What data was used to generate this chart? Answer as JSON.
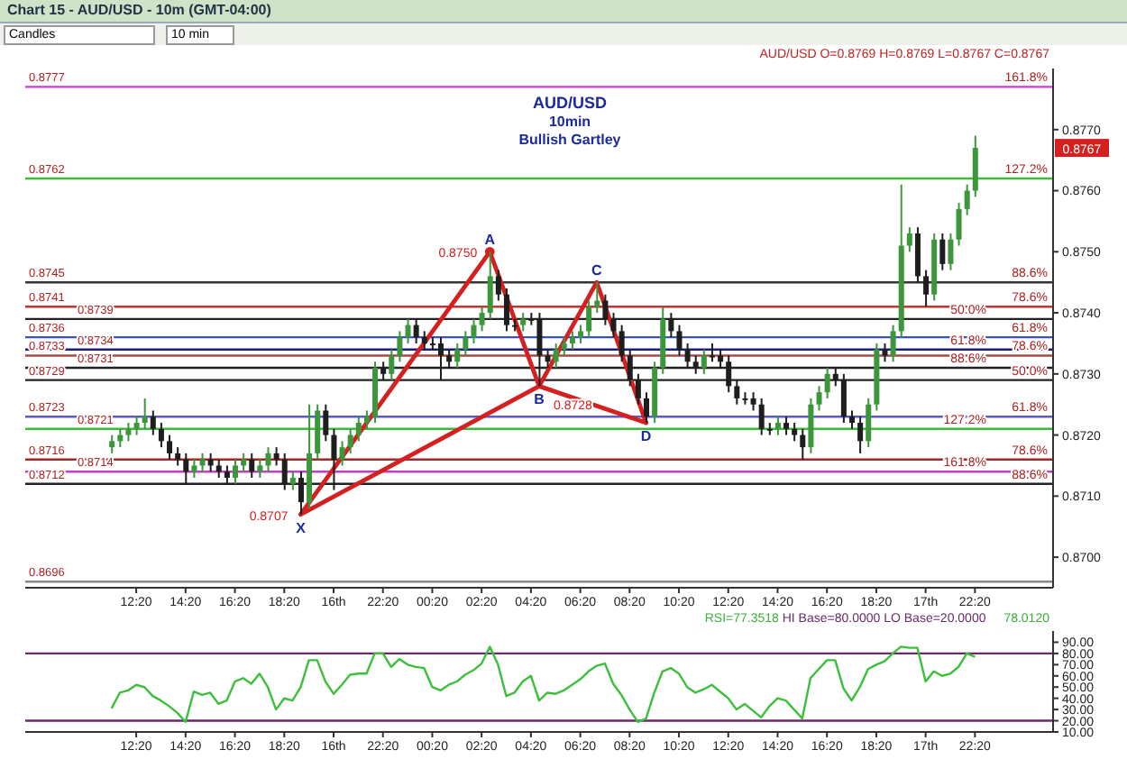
{
  "chart_data": [
    {
      "type": "candlestick",
      "title": "AUD/USD",
      "subtitle": "10min",
      "annotations": [
        "Chart 15 - AUD/USD - 10m (GMT-04:00)",
        "Candles",
        "10 min",
        "Bullish Gartley",
        "AUD/USD O=0.8769 H=0.8769 L=0.8767 C=0.8767",
        "0.8767",
        {
          "text": "161.8%",
          "y": 0.8777
        },
        {
          "text": "127.2%",
          "y": 0.8762
        },
        {
          "text": "88.6%",
          "y": 0.8745
        },
        {
          "text": "78.6%",
          "y": 0.8741
        },
        {
          "text": "50.0%",
          "y": 0.8739
        },
        {
          "text": "61.8%",
          "y": 0.8736
        },
        {
          "text": "61.8%",
          "y": 0.8734
        },
        {
          "text": "78.6%",
          "y": 0.8733
        },
        {
          "text": "88.6%",
          "y": 0.8731
        },
        {
          "text": "50.0%",
          "y": 0.8729
        },
        {
          "text": "61.8%",
          "y": 0.8723
        },
        {
          "text": "127.2%",
          "y": 0.8721
        },
        {
          "text": "78.6%",
          "y": 0.8716
        },
        {
          "text": "161.8%",
          "y": 0.8714
        },
        {
          "text": "88.6%",
          "y": 0.8712
        }
      ],
      "categories": [
        null,
        null,
        null,
        "12:20",
        null,
        null,
        null,
        null,
        null,
        "14:20",
        null,
        null,
        null,
        null,
        null,
        "16:20",
        null,
        null,
        null,
        null,
        null,
        "18:20",
        null,
        null,
        null,
        null,
        null,
        "16th",
        null,
        null,
        null,
        null,
        null,
        "22:20",
        null,
        null,
        null,
        null,
        null,
        "00:20",
        null,
        null,
        null,
        null,
        null,
        "02:20",
        null,
        null,
        null,
        null,
        null,
        "04:20",
        null,
        null,
        null,
        null,
        null,
        "06:20",
        null,
        null,
        null,
        null,
        null,
        "08:20",
        null,
        null,
        null,
        null,
        null,
        "10:20",
        null,
        null,
        null,
        null,
        null,
        "12:20",
        null,
        null,
        null,
        null,
        null,
        "14:20",
        null,
        null,
        null,
        null,
        null,
        "16:20",
        null,
        null,
        null,
        null,
        null,
        "18:20",
        null,
        null,
        null,
        null,
        null,
        "17th",
        null,
        null,
        null,
        null,
        null,
        "22:20",
        null,
        null,
        null,
        null
      ],
      "ohlc": [
        [
          0.8718,
          0.872,
          0.8717,
          0.8719
        ],
        [
          0.8719,
          0.8721,
          0.8718,
          0.872
        ],
        [
          0.872,
          0.8722,
          0.8719,
          0.8721
        ],
        [
          0.8721,
          0.8723,
          0.872,
          0.8722
        ],
        [
          0.8722,
          0.8726,
          0.8721,
          0.8723
        ],
        [
          0.8723,
          0.8724,
          0.872,
          0.8721
        ],
        [
          0.8721,
          0.8722,
          0.8718,
          0.8719
        ],
        [
          0.8719,
          0.872,
          0.8716,
          0.8717
        ],
        [
          0.8717,
          0.8718,
          0.8715,
          0.8716
        ],
        [
          0.8716,
          0.8717,
          0.8712,
          0.8714
        ],
        [
          0.8714,
          0.8716,
          0.8713,
          0.8715
        ],
        [
          0.8715,
          0.8717,
          0.8714,
          0.8716
        ],
        [
          0.8716,
          0.8717,
          0.8714,
          0.8715
        ],
        [
          0.8715,
          0.8716,
          0.8713,
          0.8714
        ],
        [
          0.8714,
          0.8715,
          0.8712,
          0.8713
        ],
        [
          0.8713,
          0.8716,
          0.8712,
          0.8715
        ],
        [
          0.8715,
          0.8717,
          0.8714,
          0.8716
        ],
        [
          0.8716,
          0.8717,
          0.8713,
          0.8714
        ],
        [
          0.8714,
          0.8716,
          0.8713,
          0.8715
        ],
        [
          0.8715,
          0.8718,
          0.8714,
          0.8717
        ],
        [
          0.8717,
          0.8718,
          0.8715,
          0.8716
        ],
        [
          0.8716,
          0.8717,
          0.8711,
          0.8712
        ],
        [
          0.8712,
          0.8714,
          0.8711,
          0.8713
        ],
        [
          0.8713,
          0.8714,
          0.8707,
          0.8709
        ],
        [
          0.8709,
          0.8725,
          0.8708,
          0.8717
        ],
        [
          0.8717,
          0.8725,
          0.8716,
          0.8724
        ],
        [
          0.8724,
          0.8725,
          0.8719,
          0.872
        ],
        [
          0.872,
          0.8721,
          0.8711,
          0.8716
        ],
        [
          0.8716,
          0.8719,
          0.8715,
          0.8718
        ],
        [
          0.8718,
          0.8721,
          0.8717,
          0.872
        ],
        [
          0.872,
          0.8723,
          0.8719,
          0.8722
        ],
        [
          0.8722,
          0.8724,
          0.8721,
          0.8723
        ],
        [
          0.8723,
          0.8732,
          0.8722,
          0.8731
        ],
        [
          0.8731,
          0.8732,
          0.8729,
          0.873
        ],
        [
          0.873,
          0.8734,
          0.8729,
          0.8733
        ],
        [
          0.8733,
          0.8737,
          0.8732,
          0.8736
        ],
        [
          0.8736,
          0.8739,
          0.8735,
          0.8738
        ],
        [
          0.8738,
          0.8739,
          0.8735,
          0.8736
        ],
        [
          0.8736,
          0.8737,
          0.8734,
          0.8735
        ],
        [
          0.8735,
          0.8736,
          0.8734,
          0.8735
        ],
        [
          0.8735,
          0.8736,
          0.8729,
          0.8733
        ],
        [
          0.8733,
          0.8734,
          0.8731,
          0.8732
        ],
        [
          0.8732,
          0.8735,
          0.8731,
          0.8734
        ],
        [
          0.8734,
          0.8737,
          0.8733,
          0.8736
        ],
        [
          0.8736,
          0.8739,
          0.8735,
          0.8738
        ],
        [
          0.8738,
          0.8741,
          0.8737,
          0.874
        ],
        [
          0.874,
          0.875,
          0.8739,
          0.8746
        ],
        [
          0.8746,
          0.8747,
          0.8742,
          0.8743
        ],
        [
          0.8743,
          0.8744,
          0.8737,
          0.8738
        ],
        [
          0.8738,
          0.8739,
          0.8737,
          0.8738
        ],
        [
          0.8738,
          0.874,
          0.8737,
          0.8739
        ],
        [
          0.8739,
          0.874,
          0.8738,
          0.8739
        ],
        [
          0.8739,
          0.874,
          0.8728,
          0.8733
        ],
        [
          0.8733,
          0.8734,
          0.8731,
          0.8732
        ],
        [
          0.8732,
          0.8735,
          0.8731,
          0.8734
        ],
        [
          0.8734,
          0.8736,
          0.8733,
          0.8735
        ],
        [
          0.8735,
          0.8737,
          0.8734,
          0.8736
        ],
        [
          0.8736,
          0.8738,
          0.8735,
          0.8737
        ],
        [
          0.8737,
          0.8742,
          0.8736,
          0.8741
        ],
        [
          0.8741,
          0.8745,
          0.874,
          0.8742
        ],
        [
          0.8742,
          0.8743,
          0.8738,
          0.8739
        ],
        [
          0.8739,
          0.874,
          0.8736,
          0.8737
        ],
        [
          0.8737,
          0.8738,
          0.8732,
          0.8733
        ],
        [
          0.8733,
          0.8734,
          0.8728,
          0.8729
        ],
        [
          0.8729,
          0.873,
          0.8725,
          0.8726
        ],
        [
          0.8726,
          0.8727,
          0.8722,
          0.8723
        ],
        [
          0.8723,
          0.8732,
          0.8722,
          0.8731
        ],
        [
          0.8731,
          0.8741,
          0.873,
          0.8739
        ],
        [
          0.8739,
          0.874,
          0.8736,
          0.8737
        ],
        [
          0.8737,
          0.8738,
          0.8733,
          0.8734
        ],
        [
          0.8734,
          0.8735,
          0.8731,
          0.8732
        ],
        [
          0.8732,
          0.8733,
          0.873,
          0.8731
        ],
        [
          0.8731,
          0.8734,
          0.873,
          0.8733
        ],
        [
          0.8733,
          0.8735,
          0.8732,
          0.8733
        ],
        [
          0.8733,
          0.8734,
          0.8731,
          0.8732
        ],
        [
          0.8732,
          0.8733,
          0.8727,
          0.8728
        ],
        [
          0.8728,
          0.8729,
          0.8725,
          0.8726
        ],
        [
          0.8726,
          0.8727,
          0.8725,
          0.8726
        ],
        [
          0.8726,
          0.8727,
          0.8724,
          0.8725
        ],
        [
          0.8725,
          0.8726,
          0.872,
          0.8721
        ],
        [
          0.8721,
          0.8722,
          0.872,
          0.8721
        ],
        [
          0.8721,
          0.8723,
          0.872,
          0.8722
        ],
        [
          0.8722,
          0.8723,
          0.872,
          0.8721
        ],
        [
          0.8721,
          0.8722,
          0.8719,
          0.872
        ],
        [
          0.872,
          0.8721,
          0.8716,
          0.8718
        ],
        [
          0.8718,
          0.8726,
          0.8717,
          0.8725
        ],
        [
          0.8725,
          0.8728,
          0.8724,
          0.8727
        ],
        [
          0.8727,
          0.8731,
          0.8726,
          0.873
        ],
        [
          0.873,
          0.8731,
          0.8728,
          0.8729
        ],
        [
          0.8729,
          0.873,
          0.8722,
          0.8723
        ],
        [
          0.8723,
          0.8724,
          0.8721,
          0.8722
        ],
        [
          0.8722,
          0.8723,
          0.8717,
          0.8719
        ],
        [
          0.8719,
          0.8726,
          0.8718,
          0.8725
        ],
        [
          0.8725,
          0.8735,
          0.8724,
          0.8734
        ],
        [
          0.8734,
          0.8735,
          0.8732,
          0.8733
        ],
        [
          0.8733,
          0.8738,
          0.8732,
          0.8737
        ],
        [
          0.8737,
          0.8761,
          0.8736,
          0.8751
        ],
        [
          0.8751,
          0.8754,
          0.875,
          0.8753
        ],
        [
          0.8753,
          0.8754,
          0.8745,
          0.8746
        ],
        [
          0.8746,
          0.8747,
          0.8741,
          0.8743
        ],
        [
          0.8743,
          0.8753,
          0.8742,
          0.8752
        ],
        [
          0.8752,
          0.8753,
          0.8747,
          0.8748
        ],
        [
          0.8748,
          0.8753,
          0.8747,
          0.8752
        ],
        [
          0.8752,
          0.8758,
          0.8751,
          0.8757
        ],
        [
          0.8757,
          0.8761,
          0.8756,
          0.876
        ],
        [
          0.876,
          0.8769,
          0.8759,
          0.8767
        ],
        null,
        null,
        null,
        null
      ],
      "colors": [
        "#3c963c",
        "#3c963c",
        "#3c963c",
        "#3c963c",
        "#3c963c",
        "#1e1e1e",
        "#1e1e1e",
        "#1e1e1e",
        "#1e1e1e",
        "#1e1e1e",
        "#3c963c",
        "#3c963c",
        "#1e1e1e",
        "#1e1e1e",
        "#1e1e1e",
        "#3c963c",
        "#3c963c",
        "#1e1e1e",
        "#3c963c",
        "#3c963c",
        "#1e1e1e",
        "#1e1e1e",
        "#3c963c",
        "#1e1e1e",
        "#3c963c",
        "#3c963c",
        "#1e1e1e",
        "#1e1e1e",
        "#3c963c",
        "#3c963c",
        "#3c963c",
        "#3c963c",
        "#3c963c",
        "#1e1e1e",
        "#3c963c",
        "#3c963c",
        "#3c963c",
        "#1e1e1e",
        "#1e1e1e",
        "#1e1e1e",
        "#1e1e1e",
        "#1e1e1e",
        "#3c963c",
        "#3c963c",
        "#3c963c",
        "#3c963c",
        "#3c963c",
        "#1e1e1e",
        "#1e1e1e",
        "#1e1e1e",
        "#3c963c",
        "#1e1e1e",
        "#1e1e1e",
        "#1e1e1e",
        "#3c963c",
        "#3c963c",
        "#3c963c",
        "#3c963c",
        "#3c963c",
        "#3c963c",
        "#1e1e1e",
        "#1e1e1e",
        "#1e1e1e",
        "#1e1e1e",
        "#1e1e1e",
        "#1e1e1e",
        "#3c963c",
        "#3c963c",
        "#1e1e1e",
        "#1e1e1e",
        "#1e1e1e",
        "#1e1e1e",
        "#3c963c",
        "#1e1e1e",
        "#1e1e1e",
        "#1e1e1e",
        "#1e1e1e",
        "#1e1e1e",
        "#1e1e1e",
        "#1e1e1e",
        "#1e1e1e",
        "#3c963c",
        "#1e1e1e",
        "#1e1e1e",
        "#1e1e1e",
        "#3c963c",
        "#3c963c",
        "#3c963c",
        "#1e1e1e",
        "#1e1e1e",
        "#1e1e1e",
        "#1e1e1e",
        "#3c963c",
        "#3c963c",
        "#1e1e1e",
        "#3c963c",
        "#3c963c",
        "#3c963c",
        "#1e1e1e",
        "#1e1e1e",
        "#3c963c",
        "#1e1e1e",
        "#3c963c",
        "#3c963c",
        "#3c963c",
        "#3c963c",
        null,
        null,
        null,
        null
      ],
      "series": [
        {
          "type": "line",
          "color": "#d42020",
          "values": [
            null,
            null,
            null,
            null,
            null,
            null,
            null,
            null,
            null,
            null,
            null,
            null,
            null,
            null,
            null,
            null,
            null,
            null,
            null,
            null,
            null,
            null,
            null,
            0.8707,
            null,
            null,
            null,
            null,
            null,
            null,
            null,
            null,
            null,
            null,
            null,
            null,
            null,
            null,
            null,
            null,
            null,
            null,
            null,
            null,
            null,
            null,
            0.875,
            null,
            null,
            null,
            null,
            null,
            0.8728,
            null,
            null,
            null,
            null,
            null,
            null,
            0.8745,
            null,
            null,
            null,
            null,
            null,
            0.8722,
            null,
            null,
            null,
            null,
            null,
            null,
            null,
            null,
            null,
            null,
            null,
            null,
            null,
            null,
            null,
            null,
            null,
            null,
            null,
            null,
            null,
            null,
            null,
            null,
            null,
            null,
            null,
            null,
            null,
            null,
            null,
            null,
            null,
            null,
            null,
            null,
            null,
            null,
            null,
            null,
            null,
            null,
            null,
            null
          ],
          "value_labels": [
            null,
            null,
            null,
            null,
            null,
            null,
            null,
            null,
            null,
            null,
            null,
            null,
            null,
            null,
            null,
            null,
            null,
            null,
            null,
            null,
            null,
            null,
            null,
            "X",
            null,
            null,
            null,
            null,
            null,
            null,
            null,
            null,
            null,
            null,
            null,
            null,
            null,
            null,
            null,
            null,
            null,
            null,
            null,
            null,
            null,
            null,
            "A",
            null,
            null,
            null,
            null,
            null,
            "B",
            null,
            null,
            null,
            null,
            null,
            null,
            "C",
            null,
            null,
            null,
            null,
            null,
            "D",
            null,
            null,
            null,
            null,
            null,
            null,
            null,
            null,
            null,
            null,
            null,
            null,
            null,
            null,
            null,
            null,
            null,
            null,
            null,
            null,
            null,
            null,
            null,
            null,
            null,
            null,
            null,
            null,
            null,
            null,
            null,
            null,
            null,
            null,
            null,
            null,
            null,
            null,
            null,
            null,
            null,
            null,
            null,
            null
          ]
        },
        {
          "type": "line",
          "color": "#d42020",
          "values": [
            null,
            null,
            null,
            null,
            null,
            null,
            null,
            null,
            null,
            null,
            null,
            null,
            null,
            null,
            null,
            null,
            null,
            null,
            null,
            null,
            null,
            null,
            null,
            0.8707,
            null,
            null,
            null,
            null,
            null,
            null,
            null,
            null,
            null,
            null,
            null,
            null,
            null,
            null,
            null,
            null,
            null,
            null,
            null,
            null,
            null,
            null,
            null,
            null,
            null,
            null,
            null,
            null,
            0.8728,
            null,
            null,
            null,
            null,
            null,
            null,
            null,
            null,
            null,
            null,
            null,
            null,
            0.8722,
            null,
            null,
            null,
            null,
            null,
            null,
            null,
            null,
            null,
            null,
            null,
            null,
            null,
            null,
            null,
            null,
            null,
            null,
            null,
            null,
            null,
            null,
            null,
            null,
            null,
            null,
            null,
            null,
            null,
            null,
            null,
            null,
            null,
            null,
            null,
            null,
            null,
            null,
            null,
            null,
            null,
            null,
            null,
            null
          ],
          "value_labels": [
            null,
            null,
            null,
            null,
            null,
            null,
            null,
            null,
            null,
            null,
            null,
            null,
            null,
            null,
            null,
            null,
            null,
            null,
            null,
            null,
            null,
            null,
            null,
            "0.8707",
            null,
            null,
            null,
            null,
            null,
            null,
            null,
            null,
            null,
            null,
            null,
            null,
            null,
            null,
            null,
            null,
            null,
            null,
            null,
            null,
            null,
            null,
            null,
            null,
            null,
            null,
            null,
            null,
            "0.8728",
            null,
            null,
            null,
            null,
            null,
            null,
            null,
            null,
            null,
            null,
            null,
            null,
            null,
            null,
            null,
            null,
            null,
            null,
            null,
            null,
            null,
            null,
            null,
            null,
            null,
            null,
            null,
            null,
            null,
            null,
            null,
            null,
            null,
            null,
            null,
            null,
            null,
            null,
            null,
            null,
            null,
            null,
            null,
            null,
            null,
            null,
            null,
            null,
            null,
            null,
            null,
            null,
            null,
            null,
            null,
            null,
            null
          ]
        },
        {
          "type": "line",
          "color": "#d42020",
          "marker": "circle",
          "values": [
            null,
            null,
            null,
            null,
            null,
            null,
            null,
            null,
            null,
            null,
            null,
            null,
            null,
            null,
            null,
            null,
            null,
            null,
            null,
            null,
            null,
            null,
            null,
            null,
            null,
            null,
            null,
            null,
            null,
            null,
            null,
            null,
            null,
            null,
            null,
            null,
            null,
            null,
            null,
            null,
            null,
            null,
            null,
            null,
            null,
            null,
            0.875,
            null,
            null,
            null,
            null,
            null,
            null,
            null,
            null,
            null,
            null,
            null,
            null,
            null,
            null,
            null,
            null,
            null,
            null,
            null,
            null,
            null,
            null,
            null,
            null,
            null,
            null,
            null,
            null,
            null,
            null,
            null,
            null,
            null,
            null,
            null,
            null,
            null,
            null,
            null,
            null,
            null,
            null,
            null,
            null,
            null,
            null,
            null,
            null,
            null,
            null,
            null,
            null,
            null,
            null,
            null,
            null,
            null,
            null,
            null,
            null,
            null,
            null,
            null
          ],
          "value_labels": [
            null,
            null,
            null,
            null,
            null,
            null,
            null,
            null,
            null,
            null,
            null,
            null,
            null,
            null,
            null,
            null,
            null,
            null,
            null,
            null,
            null,
            null,
            null,
            null,
            null,
            null,
            null,
            null,
            null,
            null,
            null,
            null,
            null,
            null,
            null,
            null,
            null,
            null,
            null,
            null,
            null,
            null,
            null,
            null,
            null,
            null,
            "0.8750",
            null,
            null,
            null,
            null,
            null,
            null,
            null,
            null,
            null,
            null,
            null,
            null,
            null,
            null,
            null,
            null,
            null,
            null,
            null,
            null,
            null,
            null,
            null,
            null,
            null,
            null,
            null,
            null,
            null,
            null,
            null,
            null,
            null,
            null,
            null,
            null,
            null,
            null,
            null,
            null,
            null,
            null,
            null,
            null,
            null,
            null,
            null,
            null,
            null,
            null,
            null,
            null,
            null,
            null,
            null,
            null,
            null,
            null,
            null,
            null,
            null,
            null,
            null
          ]
        }
      ],
      "ylim": [
        0.8695,
        0.878
      ],
      "yticks": [
        {
          "value": 0.87,
          "label": "0.8700"
        },
        {
          "value": 0.871,
          "label": "0.8710"
        },
        {
          "value": 0.872,
          "label": "0.8720"
        },
        {
          "value": 0.873,
          "label": "0.8730"
        },
        {
          "value": 0.874,
          "label": "0.8740"
        },
        {
          "value": 0.875,
          "label": "0.8750"
        },
        {
          "value": 0.876,
          "label": "0.8760"
        },
        {
          "value": 0.877,
          "label": "0.8770"
        }
      ],
      "ref_lines": [
        {
          "axis": "y",
          "value": 0.8777,
          "label": "0.8777",
          "color": "#d23cd2"
        },
        {
          "axis": "y",
          "value": 0.8762,
          "label": "0.8762",
          "color": "#3cba3c"
        },
        {
          "axis": "y",
          "value": 0.8745,
          "label": "0.8745",
          "color": "#333333"
        },
        {
          "axis": "y",
          "value": 0.8741,
          "label": "0.8741",
          "color": "#c83232"
        },
        {
          "axis": "y",
          "value": 0.8739,
          "label": "0.8739",
          "color": "#222222"
        },
        {
          "axis": "y",
          "value": 0.8736,
          "label": "0.8736",
          "color": "#3a4fc8"
        },
        {
          "axis": "y",
          "value": 0.8734,
          "label": "0.8734",
          "color": "#1e1e7a"
        },
        {
          "axis": "y",
          "value": 0.8733,
          "label": "0.8733",
          "color": "#a84848"
        },
        {
          "axis": "y",
          "value": 0.8731,
          "label": "0.8731",
          "color": "#222222"
        },
        {
          "axis": "y",
          "value": 0.8729,
          "label": "0.8729",
          "color": "#222222"
        },
        {
          "axis": "y",
          "value": 0.8723,
          "label": "0.8723",
          "color": "#5a5ac8"
        },
        {
          "axis": "y",
          "value": 0.8721,
          "label": "0.8721",
          "color": "#3cba3c"
        },
        {
          "axis": "y",
          "value": 0.8716,
          "label": "0.8716",
          "color": "#a02828"
        },
        {
          "axis": "y",
          "value": 0.8714,
          "label": "0.8714",
          "color": "#c040c0"
        },
        {
          "axis": "y",
          "value": 0.8712,
          "label": "0.8712",
          "color": "#222222"
        },
        {
          "axis": "y",
          "value": 0.8696,
          "label": "0.8696",
          "color": "#888888"
        }
      ]
    },
    {
      "type": "line",
      "color": "#3cc03c",
      "annotations": [
        "RSI=77.3518",
        "HI Base=80.0000 LO Base=20.0000",
        "78.0120"
      ],
      "categories": [
        null,
        null,
        null,
        "12:20",
        null,
        null,
        null,
        null,
        null,
        "14:20",
        null,
        null,
        null,
        null,
        null,
        "16:20",
        null,
        null,
        null,
        null,
        null,
        "18:20",
        null,
        null,
        null,
        null,
        null,
        "16th",
        null,
        null,
        null,
        null,
        null,
        "22:20",
        null,
        null,
        null,
        null,
        null,
        "00:20",
        null,
        null,
        null,
        null,
        null,
        "02:20",
        null,
        null,
        null,
        null,
        null,
        "04:20",
        null,
        null,
        null,
        null,
        null,
        "06:20",
        null,
        null,
        null,
        null,
        null,
        "08:20",
        null,
        null,
        null,
        null,
        null,
        "10:20",
        null,
        null,
        null,
        null,
        null,
        "12:20",
        null,
        null,
        null,
        null,
        null,
        "14:20",
        null,
        null,
        null,
        null,
        null,
        "16:20",
        null,
        null,
        null,
        null,
        null,
        "18:20",
        null,
        null,
        null,
        null,
        null,
        "17th",
        null,
        null,
        null,
        null,
        null,
        "22:20",
        null,
        null,
        null,
        null
      ],
      "values": [
        31,
        45,
        47,
        52,
        50,
        42,
        38,
        33,
        27,
        19,
        46,
        43,
        45,
        35,
        38,
        55,
        58,
        53,
        62,
        50,
        30,
        40,
        38,
        50,
        74,
        74,
        55,
        44,
        52,
        61,
        62,
        62,
        80,
        80,
        68,
        75,
        70,
        68,
        67,
        50,
        47,
        52,
        55,
        61,
        65,
        71,
        86,
        70,
        42,
        45,
        55,
        60,
        38,
        45,
        44,
        47,
        52,
        57,
        64,
        69,
        71,
        53,
        43,
        30,
        19,
        22,
        45,
        64,
        67,
        62,
        50,
        45,
        48,
        52,
        46,
        40,
        30,
        35,
        29,
        23,
        33,
        40,
        38,
        30,
        22,
        58,
        66,
        74,
        74,
        49,
        38,
        50,
        66,
        70,
        73,
        80,
        86,
        85,
        85,
        55,
        64,
        60,
        62,
        68,
        80,
        77,
        null,
        null,
        null,
        null
      ],
      "ylim": [
        10,
        100
      ],
      "yticks": [
        {
          "value": 10,
          "label": "10.00"
        },
        {
          "value": 20,
          "label": "20.00"
        },
        {
          "value": 30,
          "label": "30.00"
        },
        {
          "value": 40,
          "label": "40.00"
        },
        {
          "value": 50,
          "label": "50.00"
        },
        {
          "value": 60,
          "label": "60.00"
        },
        {
          "value": 70,
          "label": "70.00"
        },
        {
          "value": 80,
          "label": "80.00"
        },
        {
          "value": 90,
          "label": "90.00"
        }
      ],
      "ref_lines": [
        {
          "axis": "y",
          "value": 80,
          "color": "#6a2a6a"
        },
        {
          "axis": "y",
          "value": 20,
          "color": "#6a2a6a"
        }
      ]
    }
  ]
}
